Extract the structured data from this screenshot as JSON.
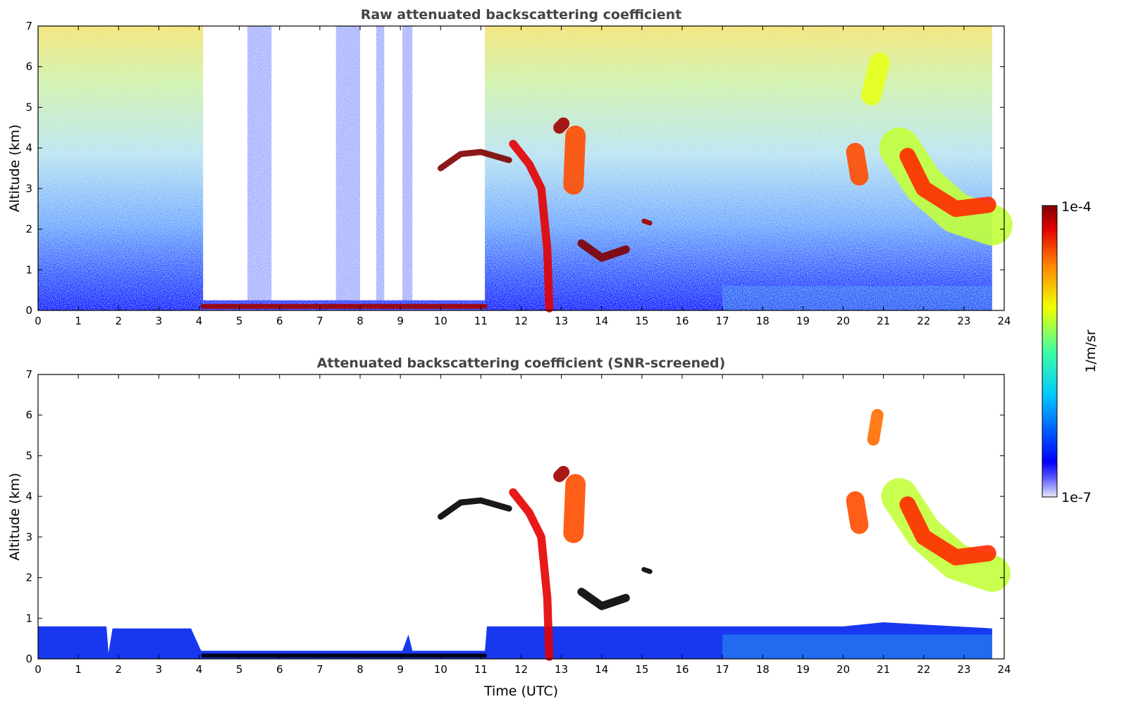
{
  "chart_data": [
    {
      "type": "heatmap",
      "title": "Raw attenuated backscattering coefficient",
      "xlabel": "",
      "ylabel": "Altitude (km)",
      "xlim": [
        0,
        24
      ],
      "ylim": [
        0,
        7
      ],
      "xticks": [
        0,
        1,
        2,
        3,
        4,
        5,
        6,
        7,
        8,
        9,
        10,
        11,
        12,
        13,
        14,
        15,
        16,
        17,
        18,
        19,
        20,
        21,
        22,
        23,
        24
      ],
      "yticks": [
        0,
        1,
        2,
        3,
        4,
        5,
        6,
        7
      ],
      "screened": false,
      "noise_segments": [
        [
          0,
          4.1
        ],
        [
          11.1,
          23.7
        ]
      ],
      "sparse_columns": [
        [
          5.2,
          5.8
        ],
        [
          7.4,
          8.0
        ],
        [
          8.4,
          8.6
        ],
        [
          9.05,
          9.3
        ]
      ],
      "features": [
        {
          "name": "surface-aerosol-layer",
          "value": -4.1,
          "width_km": 0.12,
          "points": [
            [
              4.1,
              0.1
            ],
            [
              11.1,
              0.1
            ]
          ]
        },
        {
          "name": "cloud-10-12h",
          "value": -4.0,
          "width_km": 0.15,
          "points": [
            [
              10,
              3.5
            ],
            [
              10.5,
              3.85
            ],
            [
              11,
              3.9
            ],
            [
              11.7,
              3.7
            ]
          ]
        },
        {
          "name": "virga-12-13h",
          "value": -4.3,
          "width_km": 0.2,
          "points": [
            [
              11.8,
              4.1
            ],
            [
              12.2,
              3.6
            ],
            [
              12.5,
              3.0
            ],
            [
              12.65,
              1.5
            ],
            [
              12.7,
              0.05
            ]
          ]
        },
        {
          "name": "cloud-13h-high",
          "value": -4.1,
          "width_km": 0.3,
          "points": [
            [
              12.95,
              4.5
            ],
            [
              13.05,
              4.6
            ]
          ]
        },
        {
          "name": "cloud-13h-mid",
          "value": -4.6,
          "width_km": 0.5,
          "points": [
            [
              13.3,
              3.1
            ],
            [
              13.35,
              4.3
            ]
          ]
        },
        {
          "name": "cloud-14h",
          "value": -4.0,
          "width_km": 0.2,
          "points": [
            [
              13.5,
              1.65
            ],
            [
              14,
              1.3
            ],
            [
              14.6,
              1.5
            ]
          ]
        },
        {
          "name": "cloud-15h",
          "value": -4.1,
          "width_km": 0.12,
          "points": [
            [
              15.05,
              2.2
            ],
            [
              15.2,
              2.15
            ]
          ]
        },
        {
          "name": "cloud-20h",
          "value": -4.6,
          "width_km": 0.45,
          "points": [
            [
              20.3,
              3.9
            ],
            [
              20.4,
              3.3
            ]
          ]
        },
        {
          "name": "cloud-21h",
          "value": -5.2,
          "width_km": 0.5,
          "points": [
            [
              20.7,
              5.3
            ],
            [
              20.9,
              6.1
            ]
          ]
        },
        {
          "name": "cirrus-22-24h-halo",
          "value": -5.3,
          "width_km": 1.0,
          "points": [
            [
              21.4,
              4.0
            ],
            [
              22,
              3.1
            ],
            [
              22.8,
              2.4
            ],
            [
              23.7,
              2.1
            ]
          ]
        },
        {
          "name": "cirrus-22-24h-core",
          "value": -4.5,
          "width_km": 0.4,
          "points": [
            [
              21.6,
              3.8
            ],
            [
              22,
              3.0
            ],
            [
              22.8,
              2.5
            ],
            [
              23.6,
              2.6
            ]
          ]
        }
      ]
    },
    {
      "type": "heatmap",
      "title": "Attenuated backscattering coefficient (SNR-screened)",
      "xlabel": "Time (UTC)",
      "ylabel": "Altitude (km)",
      "xlim": [
        0,
        24
      ],
      "ylim": [
        0,
        7
      ],
      "xticks": [
        0,
        1,
        2,
        3,
        4,
        5,
        6,
        7,
        8,
        9,
        10,
        11,
        12,
        13,
        14,
        15,
        16,
        17,
        18,
        19,
        20,
        21,
        22,
        23,
        24
      ],
      "yticks": [
        0,
        1,
        2,
        3,
        4,
        5,
        6,
        7
      ],
      "screened": true,
      "boundary_layer": [
        [
          0,
          0.8
        ],
        [
          1.7,
          0.8
        ],
        [
          1.75,
          0.15
        ],
        [
          1.85,
          0.75
        ],
        [
          3.8,
          0.75
        ],
        [
          4.05,
          0.2
        ],
        [
          9.05,
          0.2
        ],
        [
          9.2,
          0.6
        ],
        [
          9.3,
          0.2
        ],
        [
          11.1,
          0.2
        ],
        [
          11.15,
          0.8
        ],
        [
          20,
          0.8
        ],
        [
          21,
          0.9
        ],
        [
          23.7,
          0.75
        ]
      ],
      "features": [
        {
          "name": "surface-aerosol-layer",
          "value": -3.9,
          "width_km": 0.1,
          "points": [
            [
              4.1,
              0.08
            ],
            [
              11.1,
              0.08
            ]
          ]
        },
        {
          "name": "cloud-10-12h",
          "value": -3.9,
          "width_km": 0.15,
          "points": [
            [
              10,
              3.5
            ],
            [
              10.5,
              3.85
            ],
            [
              11,
              3.9
            ],
            [
              11.7,
              3.7
            ]
          ]
        },
        {
          "name": "virga-12-13h",
          "value": -4.3,
          "width_km": 0.2,
          "points": [
            [
              11.8,
              4.1
            ],
            [
              12.2,
              3.6
            ],
            [
              12.5,
              3.0
            ],
            [
              12.65,
              1.5
            ],
            [
              12.7,
              0.05
            ]
          ]
        },
        {
          "name": "cloud-13h-high",
          "value": -4.1,
          "width_km": 0.3,
          "points": [
            [
              12.95,
              4.5
            ],
            [
              13.05,
              4.6
            ]
          ]
        },
        {
          "name": "cloud-13h-mid",
          "value": -4.6,
          "width_km": 0.5,
          "points": [
            [
              13.3,
              3.1
            ],
            [
              13.35,
              4.3
            ]
          ]
        },
        {
          "name": "cloud-14h",
          "value": -3.9,
          "width_km": 0.2,
          "points": [
            [
              13.5,
              1.65
            ],
            [
              14,
              1.3
            ],
            [
              14.6,
              1.5
            ]
          ]
        },
        {
          "name": "cloud-15h",
          "value": -3.9,
          "width_km": 0.12,
          "points": [
            [
              15.05,
              2.2
            ],
            [
              15.2,
              2.15
            ]
          ]
        },
        {
          "name": "cloud-20h",
          "value": -4.6,
          "width_km": 0.45,
          "points": [
            [
              20.3,
              3.9
            ],
            [
              20.4,
              3.3
            ]
          ]
        },
        {
          "name": "cloud-21h",
          "value": -4.7,
          "width_km": 0.3,
          "points": [
            [
              20.75,
              5.4
            ],
            [
              20.85,
              6.0
            ]
          ]
        },
        {
          "name": "cirrus-22-24h-halo",
          "value": -5.3,
          "width_km": 0.9,
          "points": [
            [
              21.4,
              4.0
            ],
            [
              22,
              3.1
            ],
            [
              22.8,
              2.4
            ],
            [
              23.7,
              2.1
            ]
          ]
        },
        {
          "name": "cirrus-22-24h-core",
          "value": -4.5,
          "width_km": 0.4,
          "points": [
            [
              21.6,
              3.8
            ],
            [
              22,
              3.0
            ],
            [
              22.8,
              2.5
            ],
            [
              23.6,
              2.6
            ]
          ]
        }
      ]
    }
  ],
  "colorbar": {
    "label": "1/m/sr",
    "min_label": "1e-7",
    "max_label": "1e-4",
    "log_min": -7,
    "log_max": -4
  }
}
